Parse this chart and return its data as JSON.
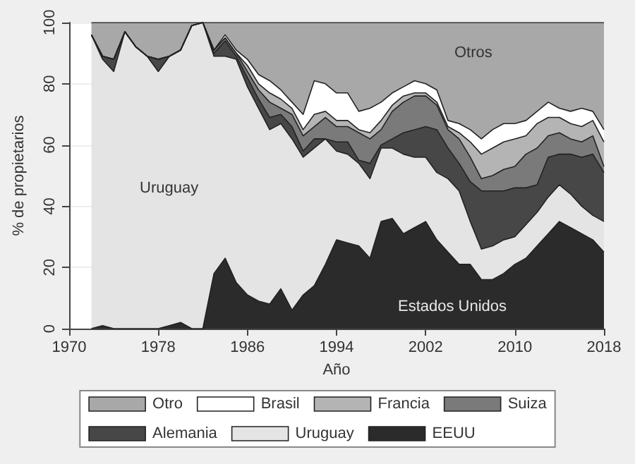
{
  "chart_data": {
    "type": "area",
    "stacked": true,
    "xlabel": "Año",
    "ylabel": "% de propietarios",
    "x": [
      1972,
      1973,
      1974,
      1975,
      1976,
      1977,
      1978,
      1979,
      1980,
      1981,
      1982,
      1983,
      1984,
      1985,
      1986,
      1987,
      1988,
      1989,
      1990,
      1991,
      1992,
      1993,
      1994,
      1995,
      1996,
      1997,
      1998,
      1999,
      2000,
      2001,
      2002,
      2003,
      2004,
      2005,
      2006,
      2007,
      2008,
      2009,
      2010,
      2011,
      2012,
      2013,
      2014,
      2015,
      2016,
      2017,
      2018
    ],
    "series": [
      {
        "name": "EEUU",
        "color": "#2b2b2b",
        "values": [
          0,
          1,
          0,
          0,
          0,
          0,
          0,
          1,
          2,
          0,
          0,
          18,
          23,
          15,
          11,
          9,
          8,
          13,
          6,
          11,
          14,
          21,
          29,
          28,
          27,
          23,
          35,
          36,
          31,
          33,
          35,
          29,
          25,
          21,
          21,
          16,
          16,
          18,
          21,
          23,
          27,
          31,
          35,
          33,
          31,
          29,
          25
        ]
      },
      {
        "name": "Uruguay",
        "color": "#e4e4e4",
        "values": [
          96,
          87,
          84,
          97,
          92,
          89,
          84,
          88,
          89,
          99,
          100,
          71,
          66,
          73,
          68,
          63,
          57,
          54,
          56,
          45,
          45,
          41,
          29,
          29,
          27,
          26,
          24,
          23,
          26,
          23,
          21,
          22,
          24,
          24,
          14,
          10,
          11,
          11,
          9,
          11,
          11,
          12,
          12,
          11,
          9,
          8,
          10
        ]
      },
      {
        "name": "Alemania",
        "color": "#474747",
        "values": [
          0,
          1,
          4,
          0,
          0,
          0,
          4,
          0,
          0,
          0,
          0,
          1,
          5,
          1,
          3,
          3,
          4,
          3,
          4,
          2,
          3,
          0,
          3,
          4,
          1,
          5,
          1,
          3,
          7,
          9,
          10,
          14,
          10,
          9,
          13,
          19,
          18,
          16,
          16,
          12,
          9,
          13,
          10,
          13,
          16,
          20,
          16
        ]
      },
      {
        "name": "Suiza",
        "color": "#7a7a7a",
        "values": [
          0,
          0,
          0,
          0,
          0,
          0,
          0,
          0,
          0,
          0,
          0,
          1,
          1,
          1,
          2,
          3,
          5,
          2,
          4,
          5,
          4,
          7,
          5,
          5,
          9,
          8,
          5,
          9,
          10,
          11,
          10,
          8,
          6,
          8,
          8,
          4,
          5,
          7,
          7,
          11,
          12,
          7,
          7,
          5,
          5,
          6,
          2
        ]
      },
      {
        "name": "Francia",
        "color": "#b4b4b4",
        "values": [
          0,
          0,
          0,
          0,
          0,
          0,
          0,
          0,
          0,
          0,
          0,
          0,
          0,
          0,
          2,
          2,
          3,
          3,
          2,
          2,
          4,
          2,
          2,
          2,
          1,
          2,
          3,
          2,
          2,
          1,
          1,
          1,
          1,
          2,
          5,
          8,
          9,
          9,
          9,
          6,
          8,
          6,
          5,
          5,
          5,
          5,
          8
        ]
      },
      {
        "name": "Brasil",
        "color": "#ffffff",
        "values": [
          0,
          0,
          0,
          0,
          0,
          0,
          0,
          0,
          0,
          0,
          0,
          0,
          1,
          1,
          2,
          3,
          4,
          3,
          2,
          5,
          11,
          9,
          9,
          9,
          6,
          8,
          6,
          4,
          3,
          4,
          3,
          4,
          2,
          3,
          4,
          5,
          6,
          6,
          5,
          5,
          4,
          5,
          3,
          4,
          6,
          3,
          4
        ]
      },
      {
        "name": "Otro",
        "color": "#a8a8a8",
        "values": [
          4,
          11,
          12,
          3,
          8,
          11,
          12,
          11,
          9,
          1,
          0,
          9,
          4,
          9,
          12,
          17,
          19,
          22,
          26,
          30,
          19,
          20,
          23,
          23,
          29,
          28,
          26,
          23,
          21,
          19,
          20,
          22,
          32,
          33,
          35,
          38,
          35,
          33,
          33,
          32,
          29,
          26,
          28,
          29,
          28,
          29,
          35
        ]
      }
    ],
    "xlim": [
      1970,
      2018
    ],
    "xticks": [
      1970,
      1978,
      1986,
      1994,
      2002,
      2010,
      2018
    ],
    "ylim": [
      0,
      100
    ],
    "yticks": [
      0,
      20,
      40,
      60,
      80,
      100
    ],
    "grid": "y",
    "legend": "bottom",
    "annotations": [
      "Otros",
      "Uruguay",
      "Estados Unidos"
    ]
  }
}
